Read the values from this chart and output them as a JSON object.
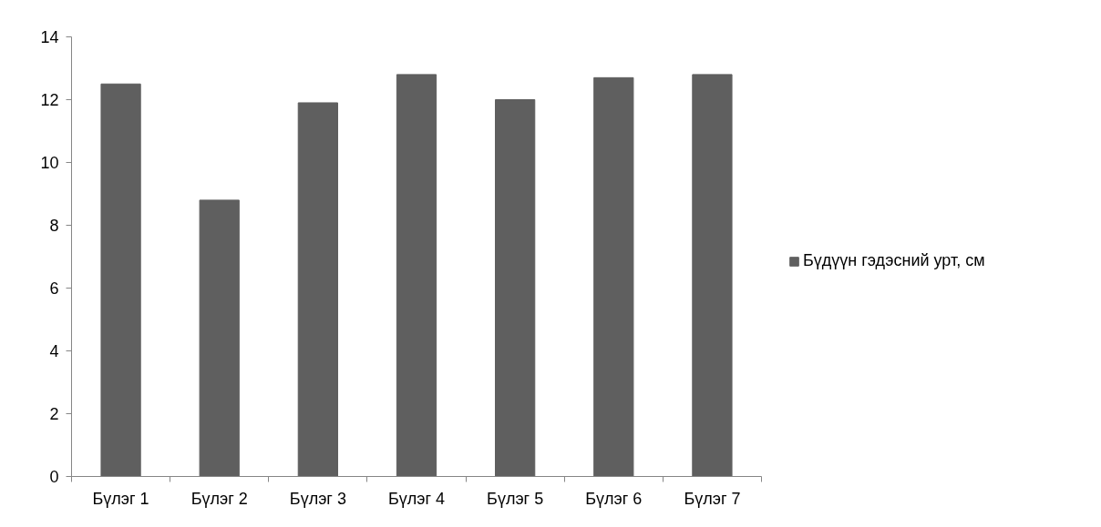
{
  "chart_data": {
    "type": "bar",
    "categories": [
      "Бүлэг 1",
      "Бүлэг 2",
      "Бүлэг 3",
      "Бүлэг 4",
      "Бүлэг 5",
      "Бүлэг 6",
      "Бүлэг 7"
    ],
    "series": [
      {
        "name": "Бүдүүн гэдэсний урт, см",
        "color": "#5f5f5f",
        "values": [
          12.5,
          8.8,
          11.9,
          12.8,
          12.0,
          12.7,
          12.8
        ]
      }
    ],
    "ylim": [
      0,
      14
    ],
    "yticks": [
      0,
      2,
      4,
      6,
      8,
      10,
      12,
      14
    ],
    "legend": "right"
  }
}
